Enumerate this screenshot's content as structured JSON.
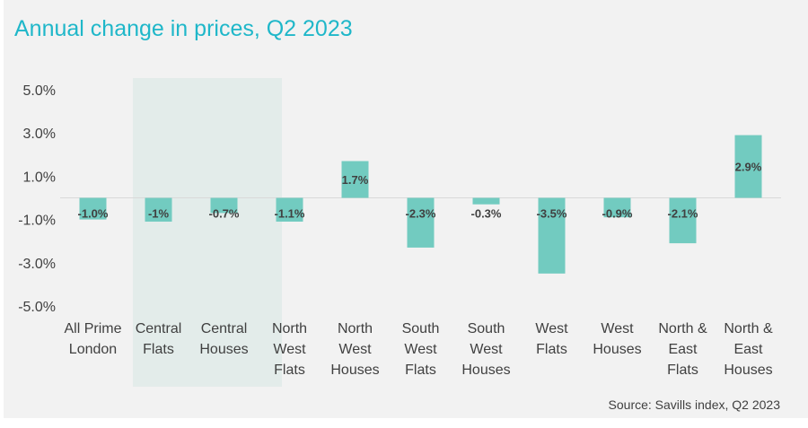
{
  "chart_data": {
    "type": "bar",
    "title": "Annual change in prices, Q2 2023",
    "source": "Source: Savills index, Q2 2023",
    "categories": [
      [
        "All Prime",
        "London"
      ],
      [
        "Central",
        "Flats"
      ],
      [
        "Central",
        "Houses"
      ],
      [
        "North",
        "West",
        "Flats"
      ],
      [
        "North",
        "West",
        "Houses"
      ],
      [
        "South",
        "West",
        "Flats"
      ],
      [
        "South",
        "West",
        "Houses"
      ],
      [
        "West",
        "Flats"
      ],
      [
        "West",
        "Houses"
      ],
      [
        "North &",
        "East",
        "Flats"
      ],
      [
        "North &",
        "East",
        "Houses"
      ]
    ],
    "values": [
      -1.0,
      -1.1,
      -0.7,
      -1.1,
      1.7,
      -2.3,
      -0.3,
      -3.5,
      -0.9,
      -2.1,
      2.9
    ],
    "data_labels": [
      "-1.0%",
      "-1%",
      "-0.7%",
      "-1.1%",
      "1.7%",
      "-2.3%",
      "-0.3%",
      "-3.5%",
      "-0.9%",
      "-2.1%",
      "2.9%"
    ],
    "y_ticks": [
      5.0,
      3.0,
      1.0,
      -1.0,
      -3.0,
      -5.0
    ],
    "y_tick_labels": [
      "5.0%",
      "3.0%",
      "1.0%",
      "-1.0%",
      "-3.0%",
      "-5.0%"
    ],
    "ylim": [
      -5.0,
      5.0
    ],
    "highlight_categories": [
      1,
      2
    ],
    "colors": {
      "bar": "#72cbc0",
      "highlight": "#e3ecea",
      "title": "#1fb7c9",
      "axis": "#d9d9d9",
      "text": "#404040"
    }
  }
}
